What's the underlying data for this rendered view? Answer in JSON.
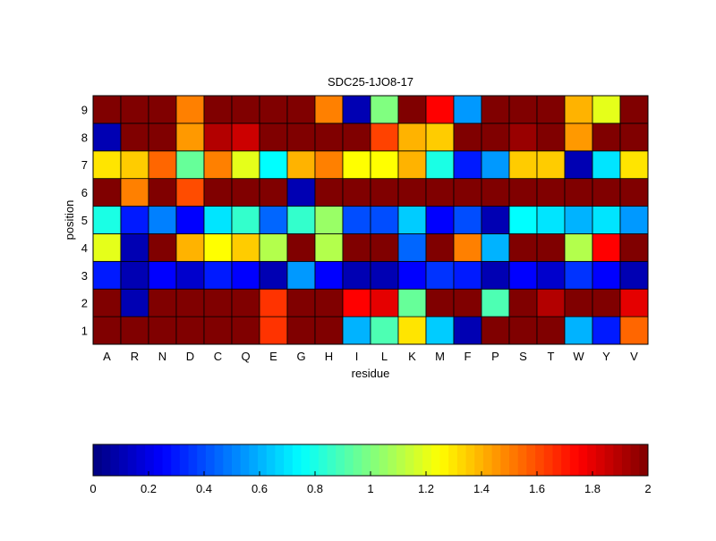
{
  "chart_data": {
    "type": "heatmap",
    "title": "SDC25-1JO8-17",
    "xlabel": "residue",
    "ylabel": "position",
    "x_categories": [
      "A",
      "R",
      "N",
      "D",
      "C",
      "Q",
      "E",
      "G",
      "H",
      "I",
      "L",
      "K",
      "M",
      "F",
      "P",
      "S",
      "T",
      "W",
      "Y",
      "V"
    ],
    "y_categories": [
      "1",
      "2",
      "3",
      "4",
      "5",
      "6",
      "7",
      "8",
      "9"
    ],
    "colormap": "jet",
    "clim": [
      0,
      2
    ],
    "colorbar": {
      "placement": "bottom",
      "ticks": [
        "0",
        "0.2",
        "0.4",
        "0.6",
        "0.8",
        "1",
        "1.2",
        "1.4",
        "1.6",
        "1.8",
        "2"
      ]
    },
    "values_by_position": {
      "9": [
        2,
        2,
        2,
        1.5,
        2,
        2,
        2,
        2,
        1.5,
        0.1,
        1.0,
        2,
        1.75,
        0.55,
        2,
        2,
        2,
        1.4,
        1.2,
        2
      ],
      "8": [
        0.1,
        2,
        2,
        1.45,
        1.9,
        1.85,
        2,
        2,
        2,
        2,
        1.62,
        1.4,
        1.35,
        2,
        2,
        1.95,
        2,
        1.45,
        2,
        2
      ],
      "7": [
        1.3,
        1.35,
        1.55,
        0.95,
        1.5,
        1.2,
        0.75,
        1.4,
        1.5,
        1.25,
        1.25,
        1.4,
        0.8,
        0.3,
        0.55,
        1.35,
        1.35,
        0.1,
        0.7,
        1.3
      ],
      "6": [
        2,
        1.5,
        2,
        1.6,
        2,
        2,
        2,
        0.1,
        2,
        2,
        2,
        2,
        2,
        2,
        2,
        2,
        2,
        2,
        2,
        2
      ],
      "5": [
        0.8,
        0.3,
        0.5,
        0.25,
        0.7,
        0.85,
        0.45,
        0.85,
        1.05,
        0.4,
        0.4,
        0.65,
        0.25,
        0.4,
        0.1,
        0.75,
        0.7,
        0.6,
        0.7,
        0.55
      ],
      "4": [
        1.2,
        0.1,
        2,
        1.4,
        1.25,
        1.35,
        1.1,
        2,
        1.1,
        2,
        2,
        0.45,
        2,
        1.5,
        0.6,
        2,
        2,
        1.1,
        1.75,
        2
      ],
      "3": [
        0.3,
        0.1,
        0.25,
        0.15,
        0.3,
        0.25,
        0.1,
        0.55,
        0.25,
        0.1,
        0.1,
        0.25,
        0.35,
        0.3,
        0.1,
        0.25,
        0.15,
        0.35,
        0.25,
        0.1
      ],
      "2": [
        2,
        0.1,
        2,
        2,
        2,
        2,
        1.65,
        2,
        2,
        1.75,
        1.8,
        0.95,
        2,
        2,
        0.9,
        2,
        1.9,
        2,
        2,
        1.8
      ],
      "1": [
        2,
        2,
        2,
        2,
        2,
        2,
        1.65,
        2,
        2,
        0.6,
        0.9,
        1.3,
        0.65,
        0.1,
        2,
        2,
        2,
        0.6,
        0.3,
        1.55
      ]
    }
  }
}
